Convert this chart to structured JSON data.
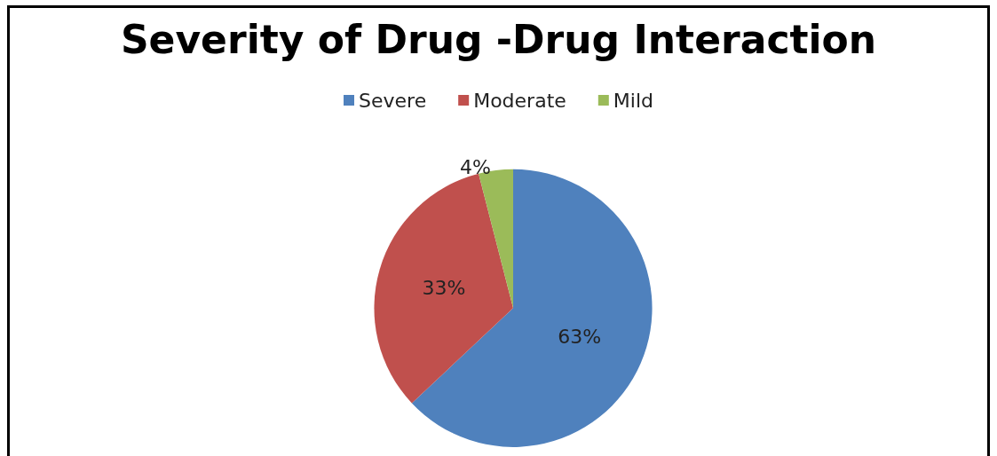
{
  "chart_data": {
    "type": "pie",
    "title": "Severity of Drug -Drug Interaction",
    "categories": [
      "Severe",
      "Moderate",
      "Mild"
    ],
    "values": [
      63,
      33,
      4
    ],
    "colors": [
      "#4f81bd",
      "#c0504d",
      "#9bbb59"
    ],
    "value_labels": [
      "63%",
      "33%",
      "4%"
    ],
    "legend": "top"
  }
}
